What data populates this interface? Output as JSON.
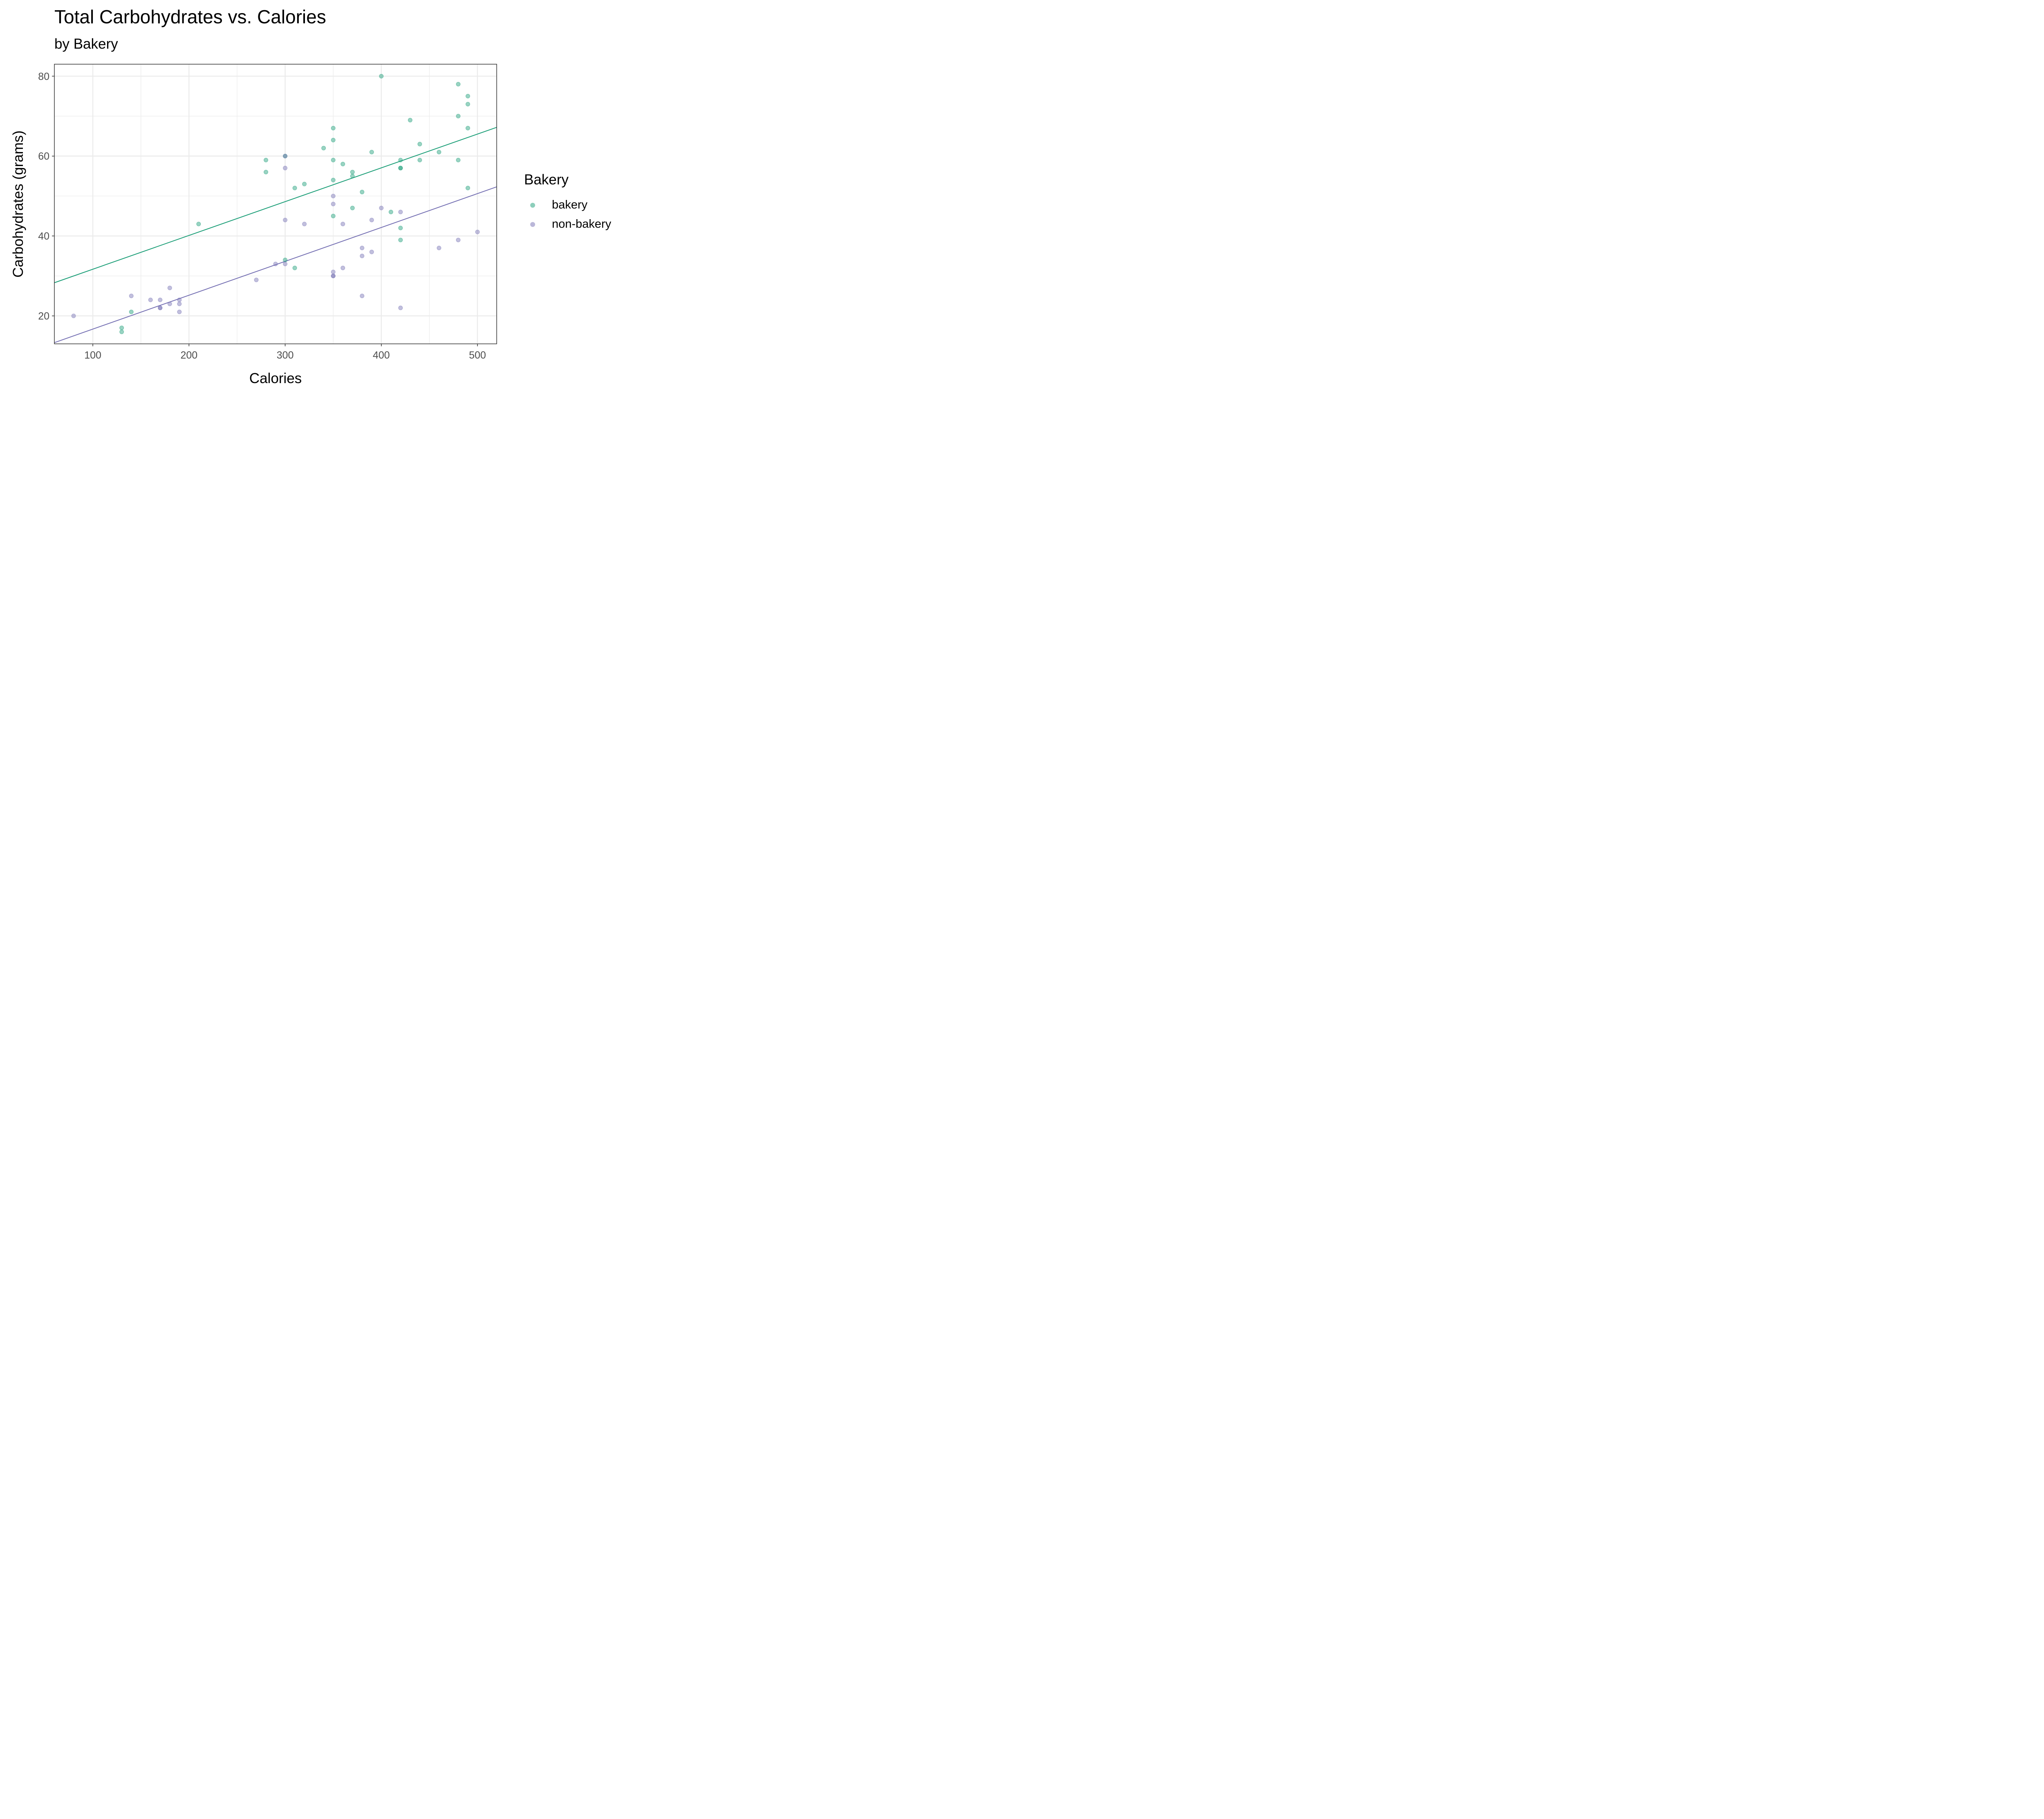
{
  "chart_data": {
    "type": "scatter",
    "title": "Total Carbohydrates vs. Calories",
    "subtitle": "by Bakery",
    "xlabel": "Calories",
    "ylabel": "Carbohydrates (grams)",
    "xlim": [
      60,
      520
    ],
    "ylim": [
      13,
      83
    ],
    "x_ticks": [
      100,
      200,
      300,
      400,
      500
    ],
    "y_ticks": [
      20,
      40,
      60,
      80
    ],
    "x_minor": [
      150,
      250,
      350,
      450
    ],
    "y_minor": [
      30,
      50,
      70
    ],
    "grid": true,
    "legend": {
      "title": "Bakery",
      "position": "right"
    },
    "series": [
      {
        "name": "bakery",
        "color": "#1b9e77",
        "points": [
          [
            130,
            17
          ],
          [
            130,
            16
          ],
          [
            140,
            21
          ],
          [
            210,
            43
          ],
          [
            280,
            59
          ],
          [
            280,
            56
          ],
          [
            300,
            60
          ],
          [
            300,
            34
          ],
          [
            310,
            52
          ],
          [
            310,
            32
          ],
          [
            320,
            53
          ],
          [
            340,
            62
          ],
          [
            350,
            67
          ],
          [
            350,
            64
          ],
          [
            350,
            59
          ],
          [
            350,
            54
          ],
          [
            350,
            45
          ],
          [
            360,
            58
          ],
          [
            370,
            56
          ],
          [
            370,
            55
          ],
          [
            370,
            47
          ],
          [
            380,
            51
          ],
          [
            390,
            61
          ],
          [
            400,
            80
          ],
          [
            410,
            46
          ],
          [
            420,
            59
          ],
          [
            420,
            57
          ],
          [
            420,
            57
          ],
          [
            420,
            42
          ],
          [
            420,
            39
          ],
          [
            430,
            69
          ],
          [
            440,
            63
          ],
          [
            440,
            59
          ],
          [
            460,
            61
          ],
          [
            480,
            78
          ],
          [
            480,
            70
          ],
          [
            480,
            59
          ],
          [
            490,
            75
          ],
          [
            490,
            73
          ],
          [
            490,
            67
          ],
          [
            490,
            52
          ]
        ],
        "fit_line": {
          "x": [
            60,
            520
          ],
          "y": [
            28.3,
            67.2
          ]
        }
      },
      {
        "name": "non-bakery",
        "color": "#7570b3",
        "points": [
          [
            80,
            20
          ],
          [
            140,
            25
          ],
          [
            160,
            24
          ],
          [
            170,
            24
          ],
          [
            170,
            22
          ],
          [
            170,
            22
          ],
          [
            180,
            27
          ],
          [
            180,
            23
          ],
          [
            190,
            24
          ],
          [
            190,
            23
          ],
          [
            190,
            21
          ],
          [
            270,
            29
          ],
          [
            290,
            33
          ],
          [
            300,
            60
          ],
          [
            300,
            57
          ],
          [
            300,
            44
          ],
          [
            300,
            33
          ],
          [
            320,
            43
          ],
          [
            350,
            50
          ],
          [
            350,
            48
          ],
          [
            350,
            31
          ],
          [
            350,
            30
          ],
          [
            350,
            30
          ],
          [
            360,
            43
          ],
          [
            360,
            32
          ],
          [
            380,
            37
          ],
          [
            380,
            35
          ],
          [
            380,
            25
          ],
          [
            390,
            44
          ],
          [
            390,
            36
          ],
          [
            400,
            47
          ],
          [
            420,
            46
          ],
          [
            420,
            22
          ],
          [
            460,
            37
          ],
          [
            480,
            39
          ],
          [
            500,
            41
          ]
        ],
        "fit_line": {
          "x": [
            60,
            520
          ],
          "y": [
            13.3,
            52.3
          ]
        }
      }
    ]
  }
}
